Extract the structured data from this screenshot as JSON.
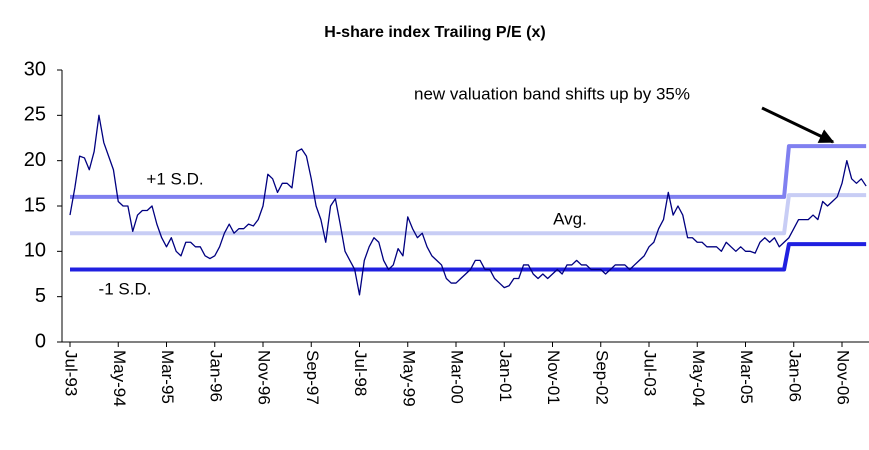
{
  "chart_data": {
    "type": "line",
    "title": "H-share index Trailing P/E (x)",
    "annotation": "new valuation band shifts up by 35%",
    "categories": [
      "Jul-93",
      null,
      null,
      null,
      null,
      null,
      null,
      null,
      null,
      null,
      "May-94",
      null,
      null,
      null,
      null,
      null,
      null,
      null,
      null,
      null,
      "Mar-95",
      null,
      null,
      null,
      null,
      null,
      null,
      null,
      null,
      null,
      "Jan-96",
      null,
      null,
      null,
      null,
      null,
      null,
      null,
      null,
      null,
      "Nov-96",
      null,
      null,
      null,
      null,
      null,
      null,
      null,
      null,
      null,
      "Sep-97",
      null,
      null,
      null,
      null,
      null,
      null,
      null,
      null,
      null,
      "Jul-98",
      null,
      null,
      null,
      null,
      null,
      null,
      null,
      null,
      null,
      "May-99",
      null,
      null,
      null,
      null,
      null,
      null,
      null,
      null,
      null,
      "Mar-00",
      null,
      null,
      null,
      null,
      null,
      null,
      null,
      null,
      null,
      "Jan-01",
      null,
      null,
      null,
      null,
      null,
      null,
      null,
      null,
      null,
      "Nov-01",
      null,
      null,
      null,
      null,
      null,
      null,
      null,
      null,
      null,
      "Sep-02",
      null,
      null,
      null,
      null,
      null,
      null,
      null,
      null,
      null,
      "Jul-03",
      null,
      null,
      null,
      null,
      null,
      null,
      null,
      null,
      null,
      "May-04",
      null,
      null,
      null,
      null,
      null,
      null,
      null,
      null,
      null,
      "Mar-05",
      null,
      null,
      null,
      null,
      null,
      null,
      null,
      null,
      null,
      "Jan-06",
      null,
      null,
      null,
      null,
      null,
      null,
      null,
      null,
      null,
      "Nov-06",
      null,
      null,
      null,
      null,
      null
    ],
    "series": [
      {
        "color": "#8080f0",
        "width": 4,
        "name": "+1 S.D.",
        "values": [
          16,
          16,
          16,
          16,
          16,
          16,
          16,
          16,
          16,
          16,
          16,
          16,
          16,
          16,
          16,
          16,
          16,
          16,
          16,
          16,
          16,
          16,
          16,
          16,
          16,
          16,
          16,
          16,
          16,
          16,
          16,
          16,
          16,
          16,
          16,
          16,
          16,
          16,
          16,
          16,
          16,
          16,
          16,
          16,
          16,
          16,
          16,
          16,
          16,
          16,
          16,
          16,
          16,
          16,
          16,
          16,
          16,
          16,
          16,
          16,
          16,
          16,
          16,
          16,
          16,
          16,
          16,
          16,
          16,
          16,
          16,
          16,
          16,
          16,
          16,
          16,
          16,
          16,
          16,
          16,
          16,
          16,
          16,
          16,
          16,
          16,
          16,
          16,
          16,
          16,
          16,
          16,
          16,
          16,
          16,
          16,
          16,
          16,
          16,
          16,
          16,
          16,
          16,
          16,
          16,
          16,
          16,
          16,
          16,
          16,
          16,
          16,
          16,
          16,
          16,
          16,
          16,
          16,
          16,
          16,
          16,
          16,
          16,
          16,
          16,
          16,
          16,
          16,
          16,
          16,
          16,
          16,
          16,
          16,
          16,
          16,
          16,
          16,
          16,
          16,
          16,
          16,
          16,
          16,
          16,
          16,
          16,
          16,
          16,
          21.6,
          21.6,
          21.6,
          21.6,
          21.6,
          21.6,
          21.6,
          21.6,
          21.6,
          21.6,
          21.6,
          21.6,
          21.6,
          21.6,
          21.6,
          21.6,
          21.6
        ]
      },
      {
        "color": "#c8cdf5",
        "width": 4,
        "name": "Avg.",
        "values": [
          12,
          12,
          12,
          12,
          12,
          12,
          12,
          12,
          12,
          12,
          12,
          12,
          12,
          12,
          12,
          12,
          12,
          12,
          12,
          12,
          12,
          12,
          12,
          12,
          12,
          12,
          12,
          12,
          12,
          12,
          12,
          12,
          12,
          12,
          12,
          12,
          12,
          12,
          12,
          12,
          12,
          12,
          12,
          12,
          12,
          12,
          12,
          12,
          12,
          12,
          12,
          12,
          12,
          12,
          12,
          12,
          12,
          12,
          12,
          12,
          12,
          12,
          12,
          12,
          12,
          12,
          12,
          12,
          12,
          12,
          12,
          12,
          12,
          12,
          12,
          12,
          12,
          12,
          12,
          12,
          12,
          12,
          12,
          12,
          12,
          12,
          12,
          12,
          12,
          12,
          12,
          12,
          12,
          12,
          12,
          12,
          12,
          12,
          12,
          12,
          12,
          12,
          12,
          12,
          12,
          12,
          12,
          12,
          12,
          12,
          12,
          12,
          12,
          12,
          12,
          12,
          12,
          12,
          12,
          12,
          12,
          12,
          12,
          12,
          12,
          12,
          12,
          12,
          12,
          12,
          12,
          12,
          12,
          12,
          12,
          12,
          12,
          12,
          12,
          12,
          12,
          12,
          12,
          12,
          12,
          12,
          12,
          12,
          12,
          16.2,
          16.2,
          16.2,
          16.2,
          16.2,
          16.2,
          16.2,
          16.2,
          16.2,
          16.2,
          16.2,
          16.2,
          16.2,
          16.2,
          16.2,
          16.2,
          16.2
        ]
      },
      {
        "color": "#2020e0",
        "width": 4,
        "name": "-1 S.D.",
        "values": [
          8,
          8,
          8,
          8,
          8,
          8,
          8,
          8,
          8,
          8,
          8,
          8,
          8,
          8,
          8,
          8,
          8,
          8,
          8,
          8,
          8,
          8,
          8,
          8,
          8,
          8,
          8,
          8,
          8,
          8,
          8,
          8,
          8,
          8,
          8,
          8,
          8,
          8,
          8,
          8,
          8,
          8,
          8,
          8,
          8,
          8,
          8,
          8,
          8,
          8,
          8,
          8,
          8,
          8,
          8,
          8,
          8,
          8,
          8,
          8,
          8,
          8,
          8,
          8,
          8,
          8,
          8,
          8,
          8,
          8,
          8,
          8,
          8,
          8,
          8,
          8,
          8,
          8,
          8,
          8,
          8,
          8,
          8,
          8,
          8,
          8,
          8,
          8,
          8,
          8,
          8,
          8,
          8,
          8,
          8,
          8,
          8,
          8,
          8,
          8,
          8,
          8,
          8,
          8,
          8,
          8,
          8,
          8,
          8,
          8,
          8,
          8,
          8,
          8,
          8,
          8,
          8,
          8,
          8,
          8,
          8,
          8,
          8,
          8,
          8,
          8,
          8,
          8,
          8,
          8,
          8,
          8,
          8,
          8,
          8,
          8,
          8,
          8,
          8,
          8,
          8,
          8,
          8,
          8,
          8,
          8,
          8,
          8,
          8,
          10.8,
          10.8,
          10.8,
          10.8,
          10.8,
          10.8,
          10.8,
          10.8,
          10.8,
          10.8,
          10.8,
          10.8,
          10.8,
          10.8,
          10.8,
          10.8,
          10.8
        ]
      },
      {
        "color": "#000080",
        "width": 1.3,
        "values": [
          14,
          17,
          20.5,
          20.3,
          19,
          21,
          25,
          22,
          20.5,
          19,
          15.5,
          15,
          15,
          12.2,
          14,
          14.5,
          14.5,
          15,
          13,
          11.5,
          10.5,
          11.5,
          10,
          9.5,
          11,
          11,
          10.5,
          10.5,
          9.5,
          9.2,
          9.5,
          10.5,
          12,
          13,
          12,
          12.5,
          12.5,
          13,
          12.8,
          13.5,
          15,
          18.5,
          18,
          16.5,
          17.5,
          17.5,
          17,
          21,
          21.3,
          20.5,
          18,
          15,
          13.5,
          11,
          15,
          15.8,
          13,
          10,
          9,
          8,
          5.2,
          9,
          10.5,
          11.5,
          11,
          9,
          8,
          8.5,
          10.3,
          9.5,
          13.8,
          12.5,
          11.5,
          12,
          10.5,
          9.5,
          9,
          8.5,
          7,
          6.5,
          6.5,
          7,
          7.5,
          8,
          9,
          9,
          8,
          8,
          7,
          6.5,
          6,
          6.2,
          7,
          7,
          8.5,
          8.5,
          7.5,
          7,
          7.5,
          7,
          7.5,
          8,
          7.5,
          8.5,
          8.5,
          9,
          8.5,
          8.5,
          8,
          8,
          8,
          7.5,
          8,
          8.5,
          8.5,
          8.5,
          8,
          8.5,
          9,
          9.5,
          10.5,
          11,
          12.5,
          13.5,
          16.5,
          14,
          15,
          14,
          11.5,
          11.5,
          11,
          11,
          10.5,
          10.5,
          10.5,
          10,
          11,
          10.5,
          10,
          10.5,
          10,
          10,
          9.8,
          11,
          11.5,
          11,
          11.5,
          10.5,
          11,
          11.5,
          12.5,
          13.5,
          13.5,
          13.5,
          14,
          13.5,
          15.5,
          15,
          15.5,
          16,
          17.5,
          20,
          18,
          17.5,
          18,
          17.2
        ]
      }
    ],
    "ylim": [
      0,
      30
    ],
    "yticks": [
      0,
      5,
      10,
      15,
      20,
      25,
      30
    ],
    "grid": false
  }
}
